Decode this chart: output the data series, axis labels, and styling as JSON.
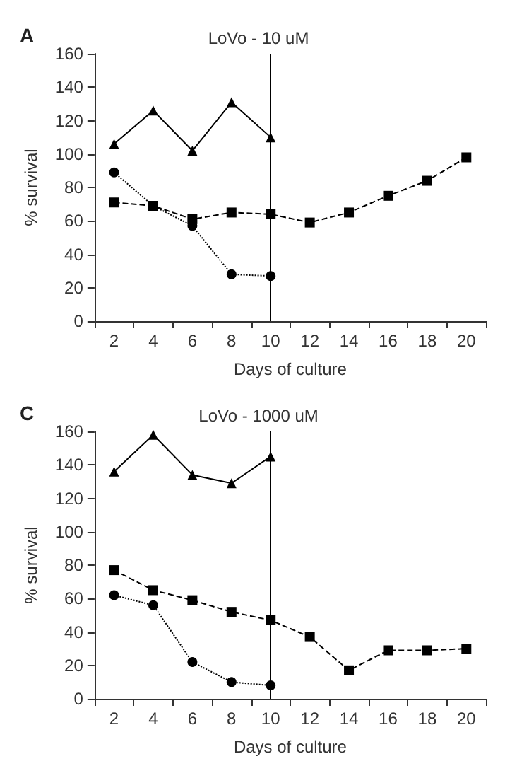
{
  "chart_data": [
    {
      "type": "line",
      "title": "LoVo - 10 uM",
      "annotations": [
        "A"
      ],
      "xlabel": "Days of culture",
      "ylabel": "% survival",
      "categories": [
        "2",
        "4",
        "6",
        "8",
        "10",
        "12",
        "14",
        "16",
        "18",
        "20"
      ],
      "ylim": [
        0,
        160
      ],
      "yticks": [
        0,
        20,
        40,
        60,
        80,
        100,
        120,
        140,
        160
      ],
      "grid": false,
      "ref_lines": [
        {
          "axis": "x",
          "value": "10",
          "color": "#000000"
        }
      ],
      "series": [
        {
          "color": "#000000",
          "marker": "triangle",
          "line_style": "solid",
          "values": [
            106,
            126,
            102,
            131,
            110,
            null,
            null,
            null,
            null,
            null
          ]
        },
        {
          "color": "#000000",
          "marker": "square",
          "line_style": "dashed",
          "values": [
            71,
            69,
            61,
            65,
            64,
            59,
            65,
            75,
            84,
            98
          ]
        },
        {
          "color": "#000000",
          "marker": "circle",
          "line_style": "dotted",
          "values": [
            89,
            69,
            57,
            28,
            27,
            null,
            null,
            null,
            null,
            null
          ]
        }
      ]
    },
    {
      "type": "line",
      "title": "LoVo - 1000 uM",
      "annotations": [
        "C"
      ],
      "xlabel": "Days of culture",
      "ylabel": "% survival",
      "categories": [
        "2",
        "4",
        "6",
        "8",
        "10",
        "12",
        "14",
        "16",
        "18",
        "20"
      ],
      "ylim": [
        0,
        160
      ],
      "yticks": [
        0,
        20,
        40,
        60,
        80,
        100,
        120,
        140,
        160
      ],
      "grid": false,
      "ref_lines": [
        {
          "axis": "x",
          "value": "10",
          "color": "#000000"
        }
      ],
      "series": [
        {
          "color": "#000000",
          "marker": "triangle",
          "line_style": "solid",
          "values": [
            136,
            158,
            134,
            129,
            145,
            null,
            null,
            null,
            null,
            null
          ]
        },
        {
          "color": "#000000",
          "marker": "square",
          "line_style": "dashed",
          "values": [
            77,
            65,
            59,
            52,
            47,
            37,
            17,
            29,
            29,
            30
          ]
        },
        {
          "color": "#000000",
          "marker": "circle",
          "line_style": "dotted",
          "values": [
            62,
            56,
            22,
            10,
            8,
            null,
            null,
            null,
            null,
            null
          ]
        }
      ]
    }
  ]
}
